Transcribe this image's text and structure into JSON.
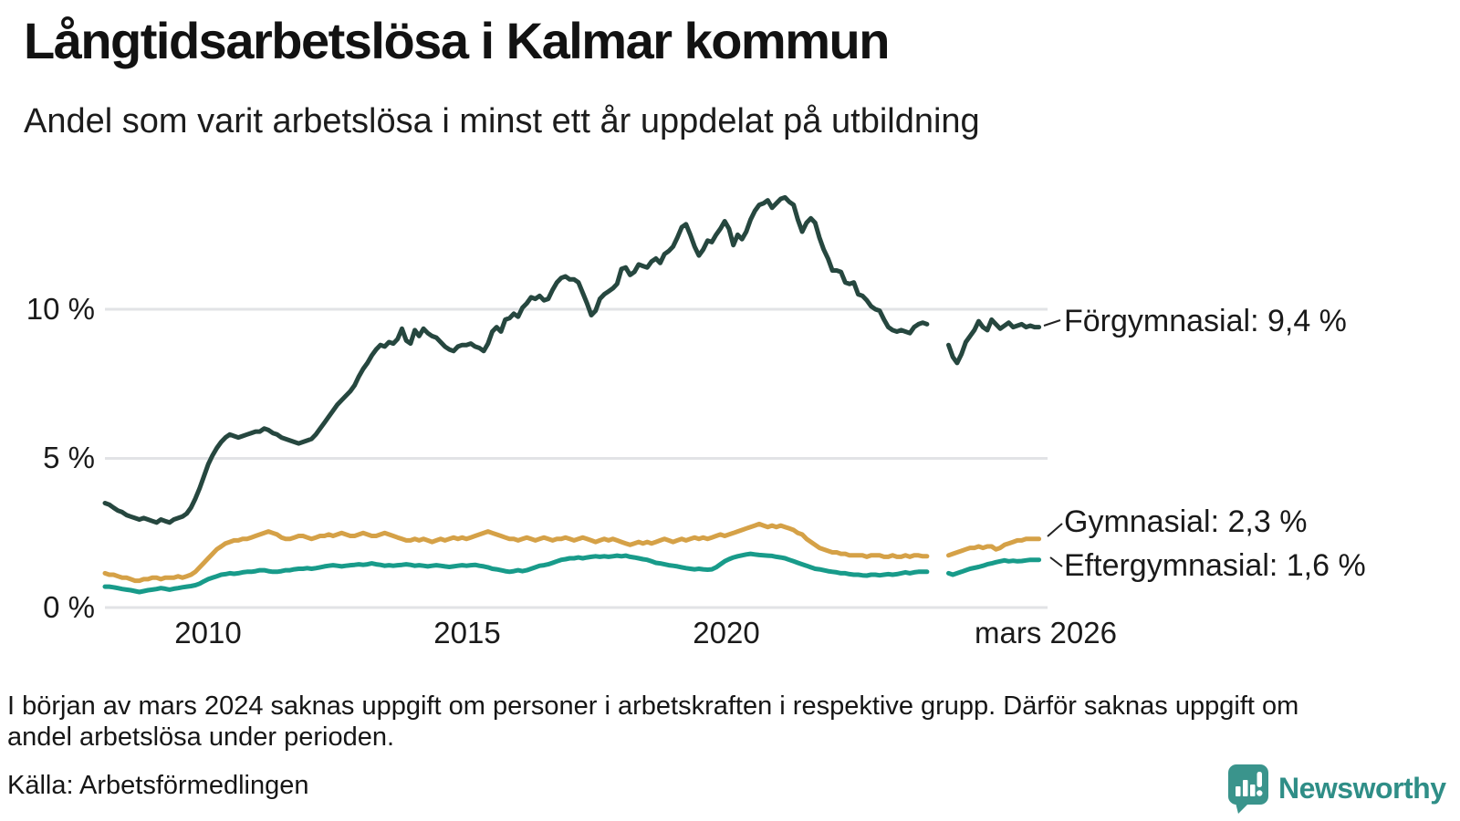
{
  "title": "Långtidsarbetslösa i Kalmar kommun",
  "subtitle": "Andel som varit arbetslösa i minst ett år uppdelat på utbildning",
  "footnote": {
    "line1": "I början av mars 2024 saknas uppgift om personer i arbetskraften i respektive grupp. Därför saknas uppgift om",
    "line2": "andel arbetslösa under perioden."
  },
  "source": "Källa: Arbetsförmedlingen",
  "logo": {
    "text": "Newsworthy",
    "icon": "bar-chart-speech-bubble-icon",
    "color": "#3A948C",
    "text_color": "#2F8E87"
  },
  "colors": {
    "grid": "#E2E3E6",
    "text": "#161616",
    "connector": "#222222"
  },
  "chart_data": {
    "type": "line",
    "title": "Långtidsarbetslösa i Kalmar kommun",
    "subtitle": "Andel som varit arbetslösa i minst ett år uppdelat på utbildning",
    "x_domain": [
      "2008-01",
      "2026-02"
    ],
    "x_frequency": "monthly",
    "x_axis_end": 2026.25,
    "ylim": [
      0,
      14
    ],
    "grid": "horizontal-only",
    "legend_position": "right-end-labels",
    "data_gap_note": "values are null Jan-Apr 2024 (missing data shown as gap in lines)",
    "yticks": [
      {
        "value": 0,
        "label": "0 %"
      },
      {
        "value": 5,
        "label": "5 %"
      },
      {
        "value": 10,
        "label": "10 %"
      }
    ],
    "xticks": [
      {
        "t": 2010.0,
        "label": "2010"
      },
      {
        "t": 2015.0,
        "label": "2015"
      },
      {
        "t": 2020.0,
        "label": "2020"
      },
      {
        "t": 2026.17,
        "label": "mars 2026"
      }
    ],
    "series": [
      {
        "name": "Förgymnasial",
        "end_label": "Förgymnasial: 9,4 %",
        "end_value_display": "9,4 %",
        "color": "#26473F",
        "values": [
          3.5,
          3.45,
          3.35,
          3.25,
          3.2,
          3.1,
          3.05,
          3.0,
          2.95,
          3.0,
          2.95,
          2.9,
          2.85,
          2.95,
          2.9,
          2.85,
          2.95,
          3.0,
          3.05,
          3.15,
          3.35,
          3.65,
          4.0,
          4.4,
          4.8,
          5.1,
          5.35,
          5.55,
          5.7,
          5.8,
          5.75,
          5.7,
          5.75,
          5.8,
          5.85,
          5.9,
          5.9,
          6.0,
          5.95,
          5.85,
          5.8,
          5.7,
          5.65,
          5.6,
          5.55,
          5.5,
          5.55,
          5.6,
          5.65,
          5.8,
          6.0,
          6.2,
          6.4,
          6.6,
          6.8,
          6.95,
          7.1,
          7.25,
          7.45,
          7.75,
          8.0,
          8.2,
          8.45,
          8.65,
          8.8,
          8.75,
          8.9,
          8.85,
          9.0,
          9.35,
          8.95,
          8.85,
          9.3,
          9.1,
          9.35,
          9.2,
          9.1,
          9.05,
          8.9,
          8.75,
          8.65,
          8.6,
          8.75,
          8.8,
          8.8,
          8.85,
          8.75,
          8.7,
          8.6,
          8.85,
          9.25,
          9.4,
          9.25,
          9.65,
          9.7,
          9.85,
          9.75,
          10.05,
          10.2,
          10.4,
          10.35,
          10.45,
          10.3,
          10.35,
          10.65,
          10.9,
          11.05,
          11.1,
          11.0,
          11.0,
          10.9,
          10.55,
          10.2,
          9.8,
          9.95,
          10.35,
          10.5,
          10.6,
          10.7,
          10.85,
          11.35,
          11.4,
          11.15,
          11.25,
          11.5,
          11.45,
          11.4,
          11.6,
          11.7,
          11.55,
          11.85,
          11.95,
          12.1,
          12.4,
          12.75,
          12.85,
          12.5,
          12.1,
          11.8,
          12.0,
          12.3,
          12.25,
          12.5,
          12.7,
          12.95,
          12.7,
          12.15,
          12.5,
          12.35,
          12.6,
          13.0,
          13.3,
          13.5,
          13.55,
          13.65,
          13.4,
          13.55,
          13.7,
          13.75,
          13.6,
          13.5,
          13.0,
          12.6,
          12.9,
          13.05,
          12.9,
          12.4,
          12.0,
          11.7,
          11.3,
          11.3,
          11.25,
          10.9,
          10.85,
          10.9,
          10.5,
          10.45,
          10.3,
          10.1,
          10.0,
          9.95,
          9.65,
          9.4,
          9.3,
          9.25,
          9.3,
          9.25,
          9.2,
          9.4,
          9.5,
          9.55,
          9.5,
          null,
          null,
          null,
          null,
          8.8,
          8.4,
          8.2,
          8.5,
          8.9,
          9.1,
          9.3,
          9.6,
          9.4,
          9.3,
          9.65,
          9.5,
          9.35,
          9.45,
          9.55,
          9.4,
          9.45,
          9.5,
          9.4,
          9.45,
          9.4,
          9.4
        ]
      },
      {
        "name": "Gymnasial",
        "end_label": "Gymnasial: 2,3 %",
        "end_value_display": "2,3 %",
        "color": "#D5A147",
        "values": [
          1.15,
          1.1,
          1.1,
          1.05,
          1.0,
          1.0,
          0.95,
          0.9,
          0.9,
          0.95,
          0.95,
          1.0,
          1.0,
          0.95,
          1.0,
          1.0,
          1.0,
          1.05,
          1.0,
          1.05,
          1.1,
          1.2,
          1.35,
          1.5,
          1.65,
          1.8,
          1.95,
          2.05,
          2.15,
          2.2,
          2.25,
          2.25,
          2.3,
          2.3,
          2.35,
          2.4,
          2.45,
          2.5,
          2.55,
          2.5,
          2.45,
          2.35,
          2.3,
          2.3,
          2.35,
          2.4,
          2.4,
          2.35,
          2.3,
          2.35,
          2.4,
          2.4,
          2.45,
          2.4,
          2.45,
          2.5,
          2.45,
          2.4,
          2.4,
          2.45,
          2.5,
          2.45,
          2.4,
          2.4,
          2.45,
          2.5,
          2.45,
          2.4,
          2.35,
          2.3,
          2.25,
          2.25,
          2.3,
          2.25,
          2.3,
          2.25,
          2.2,
          2.25,
          2.3,
          2.25,
          2.3,
          2.35,
          2.3,
          2.35,
          2.3,
          2.35,
          2.4,
          2.45,
          2.5,
          2.55,
          2.5,
          2.45,
          2.4,
          2.35,
          2.3,
          2.3,
          2.25,
          2.3,
          2.35,
          2.3,
          2.25,
          2.3,
          2.35,
          2.3,
          2.25,
          2.3,
          2.3,
          2.35,
          2.3,
          2.25,
          2.3,
          2.35,
          2.3,
          2.25,
          2.2,
          2.25,
          2.3,
          2.25,
          2.3,
          2.25,
          2.2,
          2.15,
          2.1,
          2.15,
          2.2,
          2.15,
          2.2,
          2.15,
          2.2,
          2.25,
          2.3,
          2.25,
          2.2,
          2.25,
          2.3,
          2.25,
          2.3,
          2.35,
          2.3,
          2.35,
          2.3,
          2.35,
          2.4,
          2.45,
          2.4,
          2.45,
          2.5,
          2.55,
          2.6,
          2.65,
          2.7,
          2.75,
          2.8,
          2.75,
          2.7,
          2.75,
          2.7,
          2.75,
          2.7,
          2.65,
          2.6,
          2.5,
          2.45,
          2.3,
          2.2,
          2.1,
          2.0,
          1.95,
          1.9,
          1.85,
          1.85,
          1.8,
          1.8,
          1.75,
          1.75,
          1.75,
          1.75,
          1.7,
          1.75,
          1.75,
          1.75,
          1.7,
          1.7,
          1.75,
          1.7,
          1.7,
          1.75,
          1.7,
          1.75,
          1.75,
          1.72,
          1.72,
          null,
          null,
          null,
          null,
          1.75,
          1.8,
          1.85,
          1.9,
          1.95,
          2.0,
          2.0,
          2.05,
          2.0,
          2.05,
          2.05,
          1.95,
          2.0,
          2.1,
          2.15,
          2.2,
          2.25,
          2.25,
          2.3,
          2.3,
          2.3,
          2.3
        ]
      },
      {
        "name": "Eftergymnasial",
        "end_label": "Eftergymnasial: 1,6 %",
        "end_value_display": "1,6 %",
        "color": "#189B8A",
        "values": [
          0.7,
          0.7,
          0.68,
          0.65,
          0.62,
          0.6,
          0.58,
          0.55,
          0.52,
          0.55,
          0.58,
          0.6,
          0.62,
          0.65,
          0.63,
          0.6,
          0.63,
          0.65,
          0.68,
          0.7,
          0.72,
          0.75,
          0.8,
          0.88,
          0.95,
          1.0,
          1.05,
          1.1,
          1.12,
          1.15,
          1.13,
          1.15,
          1.18,
          1.2,
          1.2,
          1.22,
          1.25,
          1.25,
          1.22,
          1.2,
          1.2,
          1.22,
          1.25,
          1.25,
          1.28,
          1.3,
          1.3,
          1.32,
          1.3,
          1.32,
          1.35,
          1.38,
          1.4,
          1.42,
          1.4,
          1.38,
          1.4,
          1.42,
          1.43,
          1.45,
          1.43,
          1.45,
          1.48,
          1.45,
          1.43,
          1.4,
          1.42,
          1.4,
          1.42,
          1.43,
          1.45,
          1.43,
          1.4,
          1.42,
          1.4,
          1.38,
          1.4,
          1.42,
          1.4,
          1.38,
          1.36,
          1.38,
          1.4,
          1.42,
          1.4,
          1.42,
          1.43,
          1.4,
          1.38,
          1.35,
          1.3,
          1.28,
          1.25,
          1.22,
          1.2,
          1.22,
          1.25,
          1.22,
          1.25,
          1.3,
          1.35,
          1.4,
          1.42,
          1.45,
          1.5,
          1.55,
          1.6,
          1.62,
          1.65,
          1.65,
          1.68,
          1.65,
          1.68,
          1.7,
          1.72,
          1.7,
          1.72,
          1.7,
          1.72,
          1.74,
          1.72,
          1.74,
          1.7,
          1.68,
          1.65,
          1.62,
          1.6,
          1.55,
          1.5,
          1.48,
          1.45,
          1.42,
          1.4,
          1.38,
          1.35,
          1.32,
          1.3,
          1.28,
          1.3,
          1.28,
          1.27,
          1.28,
          1.35,
          1.45,
          1.55,
          1.62,
          1.68,
          1.72,
          1.75,
          1.78,
          1.8,
          1.78,
          1.76,
          1.75,
          1.74,
          1.73,
          1.7,
          1.68,
          1.65,
          1.6,
          1.55,
          1.5,
          1.45,
          1.4,
          1.35,
          1.3,
          1.28,
          1.25,
          1.22,
          1.2,
          1.18,
          1.15,
          1.15,
          1.12,
          1.1,
          1.1,
          1.08,
          1.07,
          1.1,
          1.1,
          1.08,
          1.1,
          1.12,
          1.1,
          1.12,
          1.15,
          1.18,
          1.15,
          1.18,
          1.2,
          1.2,
          1.2,
          null,
          null,
          null,
          null,
          1.15,
          1.1,
          1.15,
          1.2,
          1.25,
          1.3,
          1.33,
          1.36,
          1.4,
          1.45,
          1.48,
          1.52,
          1.55,
          1.58,
          1.55,
          1.57,
          1.55,
          1.56,
          1.58,
          1.6,
          1.6,
          1.6
        ]
      }
    ]
  }
}
